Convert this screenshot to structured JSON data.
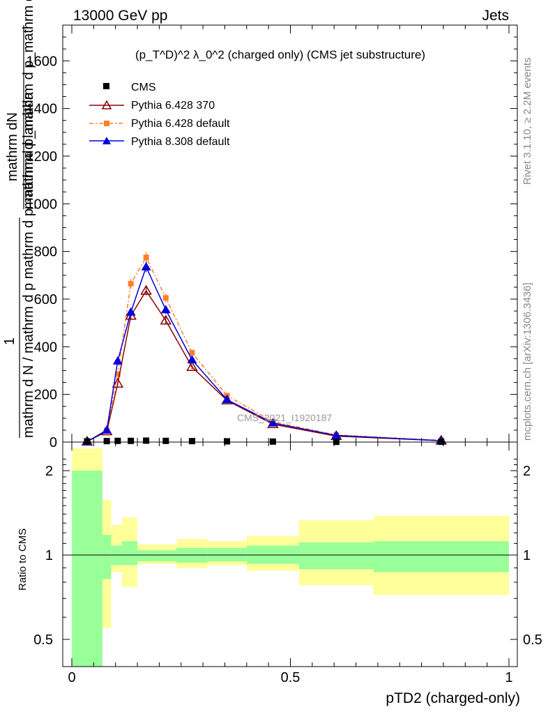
{
  "header": {
    "left": "13000 GeV pp",
    "right": "Jets"
  },
  "side_labels": {
    "rivet": "Rivet 3.1.10, ≥ 2.2M events",
    "mcplots": "mcplots.cern.ch [arXiv:1306.3436]"
  },
  "watermark": "CMS_2021_I1920187",
  "legend_title": "(p_T^D)^2 λ_0^2 (charged only) (CMS jet substructure)",
  "colors": {
    "cms": "#000000",
    "py6_370": "#8b0000",
    "py6_default": "#ff7f2a",
    "py8_default": "#0000dd",
    "band_inner": "#99ff99",
    "band_outer": "#ffff99"
  },
  "chart_data": [
    {
      "type": "line",
      "xlim": [
        0,
        1
      ],
      "ylim": [
        0,
        1750
      ],
      "ylabel_fraction_top": "mathrm dN",
      "ylabel_fraction_bottom": "mathrm d p_mathrm d p_mathrm d lambda",
      "ylabel_prefix_top": "1",
      "ylabel_prefix_bottom": "mathrm d N / mathrm d p mathrm d p_mathrm d lambda",
      "yticks": [
        0,
        200,
        400,
        600,
        800,
        1000,
        1200,
        1400,
        1600
      ],
      "ytick_labels": [
        "0",
        "200",
        "400",
        "600",
        "800",
        "1000",
        "1200",
        "1400",
        "1600"
      ],
      "series": [
        {
          "name": "CMS",
          "x": [
            0.035,
            0.08,
            0.105,
            0.135,
            0.17,
            0.215,
            0.275,
            0.355,
            0.46,
            0.605,
            0.845
          ],
          "y": [
            3,
            4,
            5,
            5,
            6,
            5,
            4,
            3,
            2,
            1,
            1
          ]
        },
        {
          "name": "Pythia 6.428 370",
          "x": [
            0.035,
            0.08,
            0.105,
            0.135,
            0.17,
            0.215,
            0.275,
            0.355,
            0.46,
            0.605,
            0.845
          ],
          "y": [
            2,
            45,
            245,
            530,
            635,
            510,
            315,
            175,
            75,
            25,
            6
          ]
        },
        {
          "name": "Pythia 6.428 default",
          "x": [
            0.035,
            0.08,
            0.105,
            0.135,
            0.17,
            0.215,
            0.275,
            0.355,
            0.46,
            0.605,
            0.845
          ],
          "y": [
            2,
            50,
            285,
            665,
            775,
            605,
            375,
            195,
            85,
            30,
            7
          ]
        },
        {
          "name": "Pythia 8.308 default",
          "x": [
            0.035,
            0.08,
            0.105,
            0.135,
            0.17,
            0.215,
            0.275,
            0.355,
            0.46,
            0.605,
            0.845
          ],
          "y": [
            2,
            50,
            340,
            545,
            735,
            555,
            345,
            178,
            80,
            28,
            6
          ]
        }
      ]
    },
    {
      "type": "area",
      "xlim": [
        0,
        1
      ],
      "ylim": [
        0.35,
        2.3
      ],
      "xlabel": "pTD2 (charged-only)",
      "ylabel": "Ratio to CMS",
      "xticks": [
        0,
        0.5,
        1
      ],
      "xtick_labels": [
        "0",
        "0.5",
        "1"
      ],
      "yticks": [
        0.5,
        1,
        2
      ],
      "ytick_labels": [
        "0.5",
        "1",
        "2"
      ],
      "bin_edges": [
        0,
        0.07,
        0.09,
        0.115,
        0.15,
        0.19,
        0.24,
        0.31,
        0.4,
        0.52,
        0.69,
        1.0
      ],
      "inner_band": {
        "low": [
          0.3,
          0.82,
          0.92,
          0.92,
          0.95,
          0.95,
          0.94,
          0.95,
          0.93,
          0.89,
          0.87
        ],
        "high": [
          2.0,
          1.18,
          1.08,
          1.12,
          1.04,
          1.04,
          1.06,
          1.06,
          1.08,
          1.11,
          1.12
        ]
      },
      "outer_band": {
        "low": [
          0.3,
          0.55,
          0.87,
          0.77,
          0.93,
          0.93,
          0.9,
          0.92,
          0.88,
          0.78,
          0.72
        ],
        "high": [
          2.4,
          1.57,
          1.28,
          1.36,
          1.09,
          1.09,
          1.14,
          1.12,
          1.17,
          1.33,
          1.38
        ]
      },
      "reference_line": 1
    }
  ]
}
